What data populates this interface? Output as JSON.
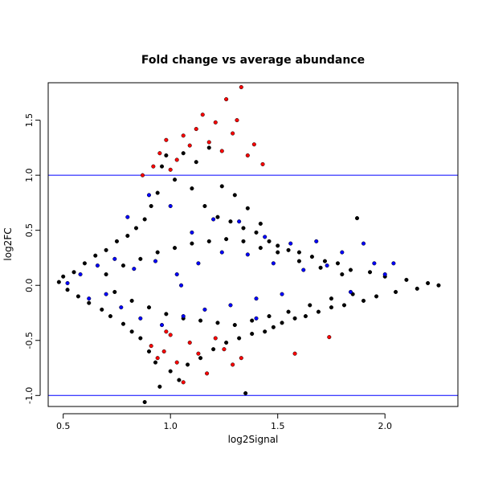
{
  "chart_data": {
    "type": "scatter",
    "title": "Fold change vs average abundance",
    "xlabel": "log2Signal",
    "ylabel": "log2FC",
    "xlim": [
      0.43,
      2.34
    ],
    "ylim": [
      -1.1,
      1.84
    ],
    "x_ticks": [
      "0.5",
      "1.0",
      "1.5",
      "2.0"
    ],
    "y_ticks": [
      "-1.0",
      "-0.5",
      "0.0",
      "0.5",
      "1.0",
      "1.5"
    ],
    "hlines": [
      1.0,
      -1.0
    ],
    "grid": false,
    "legend": "none",
    "colors": {
      "default": "#000000",
      "group_blue": "#0000ff",
      "group_red": "#ff0000",
      "reference_line": "#0000ff"
    },
    "series": [
      {
        "color": "#000000",
        "points": [
          [
            0.48,
            0.03
          ],
          [
            0.5,
            0.08
          ],
          [
            0.52,
            -0.04
          ],
          [
            0.55,
            0.12
          ],
          [
            0.57,
            -0.1
          ],
          [
            0.6,
            0.2
          ],
          [
            0.62,
            -0.16
          ],
          [
            0.65,
            0.27
          ],
          [
            0.68,
            -0.22
          ],
          [
            0.7,
            0.32
          ],
          [
            0.72,
            -0.28
          ],
          [
            0.75,
            0.4
          ],
          [
            0.78,
            -0.35
          ],
          [
            0.8,
            0.45
          ],
          [
            0.82,
            -0.42
          ],
          [
            0.84,
            0.52
          ],
          [
            0.86,
            -0.48
          ],
          [
            0.88,
            0.6
          ],
          [
            0.88,
            -1.06
          ],
          [
            0.9,
            -0.6
          ],
          [
            0.91,
            0.72
          ],
          [
            0.93,
            -0.7
          ],
          [
            0.94,
            0.84
          ],
          [
            0.95,
            -0.92
          ],
          [
            0.96,
            1.08
          ],
          [
            0.98,
            1.18
          ],
          [
            1.0,
            -0.78
          ],
          [
            1.02,
            0.96
          ],
          [
            1.04,
            -0.86
          ],
          [
            1.06,
            1.2
          ],
          [
            1.08,
            -0.72
          ],
          [
            1.1,
            0.88
          ],
          [
            1.12,
            1.12
          ],
          [
            1.14,
            -0.66
          ],
          [
            1.16,
            0.72
          ],
          [
            1.18,
            1.25
          ],
          [
            1.2,
            -0.58
          ],
          [
            1.22,
            0.62
          ],
          [
            1.24,
            0.9
          ],
          [
            1.26,
            -0.52
          ],
          [
            1.28,
            0.58
          ],
          [
            1.3,
            0.82
          ],
          [
            1.32,
            -0.48
          ],
          [
            1.34,
            0.52
          ],
          [
            1.35,
            -0.98
          ],
          [
            1.36,
            0.7
          ],
          [
            1.38,
            -0.44
          ],
          [
            1.4,
            0.48
          ],
          [
            1.42,
            0.56
          ],
          [
            1.44,
            -0.42
          ],
          [
            1.46,
            0.4
          ],
          [
            1.48,
            -0.38
          ],
          [
            1.5,
            0.36
          ],
          [
            1.52,
            -0.34
          ],
          [
            1.55,
            0.32
          ],
          [
            1.58,
            -0.3
          ],
          [
            1.6,
            0.3
          ],
          [
            1.63,
            -0.28
          ],
          [
            1.66,
            0.26
          ],
          [
            1.69,
            -0.24
          ],
          [
            1.72,
            0.22
          ],
          [
            1.75,
            -0.2
          ],
          [
            1.78,
            0.2
          ],
          [
            1.81,
            -0.18
          ],
          [
            1.84,
            0.14
          ],
          [
            1.87,
            0.61
          ],
          [
            1.9,
            -0.14
          ],
          [
            1.93,
            0.12
          ],
          [
            1.96,
            -0.1
          ],
          [
            2.0,
            0.08
          ],
          [
            2.05,
            -0.06
          ],
          [
            2.1,
            0.05
          ],
          [
            2.15,
            -0.03
          ],
          [
            2.2,
            0.02
          ],
          [
            2.25,
            0.0
          ],
          [
            0.7,
            0.1
          ],
          [
            0.74,
            -0.06
          ],
          [
            0.78,
            0.18
          ],
          [
            0.82,
            -0.14
          ],
          [
            0.86,
            0.24
          ],
          [
            0.9,
            -0.2
          ],
          [
            0.94,
            0.3
          ],
          [
            0.98,
            -0.26
          ],
          [
            1.02,
            0.34
          ],
          [
            1.06,
            -0.3
          ],
          [
            1.1,
            0.38
          ],
          [
            1.14,
            -0.32
          ],
          [
            1.18,
            0.4
          ],
          [
            1.22,
            -0.34
          ],
          [
            1.26,
            0.42
          ],
          [
            1.3,
            -0.36
          ],
          [
            1.34,
            0.4
          ],
          [
            1.38,
            -0.32
          ],
          [
            1.42,
            0.34
          ],
          [
            1.46,
            -0.28
          ],
          [
            1.5,
            0.3
          ],
          [
            1.55,
            -0.24
          ],
          [
            1.6,
            0.22
          ],
          [
            1.65,
            -0.18
          ],
          [
            1.7,
            0.16
          ],
          [
            1.75,
            -0.12
          ],
          [
            1.8,
            0.1
          ],
          [
            1.85,
            -0.08
          ]
        ]
      },
      {
        "color": "#0000ff",
        "points": [
          [
            0.52,
            0.02
          ],
          [
            0.58,
            0.1
          ],
          [
            0.62,
            -0.12
          ],
          [
            0.66,
            0.18
          ],
          [
            0.7,
            -0.08
          ],
          [
            0.74,
            0.24
          ],
          [
            0.77,
            -0.2
          ],
          [
            0.8,
            0.62
          ],
          [
            0.83,
            0.15
          ],
          [
            0.86,
            -0.3
          ],
          [
            0.9,
            0.82
          ],
          [
            0.93,
            0.22
          ],
          [
            0.96,
            -0.36
          ],
          [
            1.0,
            0.72
          ],
          [
            1.03,
            0.1
          ],
          [
            1.06,
            -0.28
          ],
          [
            1.1,
            0.48
          ],
          [
            1.13,
            0.2
          ],
          [
            1.16,
            -0.22
          ],
          [
            1.2,
            0.6
          ],
          [
            1.24,
            0.3
          ],
          [
            1.28,
            -0.18
          ],
          [
            1.32,
            0.58
          ],
          [
            1.36,
            0.28
          ],
          [
            1.4,
            -0.12
          ],
          [
            1.44,
            0.44
          ],
          [
            1.48,
            0.2
          ],
          [
            1.52,
            -0.08
          ],
          [
            1.56,
            0.38
          ],
          [
            1.62,
            0.14
          ],
          [
            1.68,
            0.4
          ],
          [
            1.73,
            0.18
          ],
          [
            1.8,
            0.3
          ],
          [
            1.84,
            -0.06
          ],
          [
            1.9,
            0.38
          ],
          [
            1.95,
            0.2
          ],
          [
            2.0,
            0.1
          ],
          [
            2.04,
            0.2
          ],
          [
            1.4,
            -0.3
          ],
          [
            1.05,
            0.0
          ]
        ]
      },
      {
        "color": "#ff0000",
        "points": [
          [
            0.87,
            1.0
          ],
          [
            0.92,
            1.08
          ],
          [
            0.95,
            1.2
          ],
          [
            0.98,
            1.32
          ],
          [
            1.0,
            1.05
          ],
          [
            1.03,
            1.14
          ],
          [
            1.06,
            1.36
          ],
          [
            1.09,
            1.27
          ],
          [
            1.12,
            1.42
          ],
          [
            1.15,
            1.55
          ],
          [
            1.18,
            1.3
          ],
          [
            1.21,
            1.48
          ],
          [
            1.24,
            1.22
          ],
          [
            1.26,
            1.69
          ],
          [
            1.29,
            1.38
          ],
          [
            1.31,
            1.5
          ],
          [
            1.33,
            1.8
          ],
          [
            1.36,
            1.18
          ],
          [
            1.39,
            1.28
          ],
          [
            1.43,
            1.1
          ],
          [
            0.91,
            -0.55
          ],
          [
            0.94,
            -0.66
          ],
          [
            0.97,
            -0.6
          ],
          [
            1.0,
            -0.45
          ],
          [
            1.03,
            -0.7
          ],
          [
            1.06,
            -0.88
          ],
          [
            1.09,
            -0.52
          ],
          [
            1.13,
            -0.62
          ],
          [
            1.17,
            -0.8
          ],
          [
            1.21,
            -0.48
          ],
          [
            1.25,
            -0.58
          ],
          [
            1.29,
            -0.72
          ],
          [
            1.33,
            -0.66
          ],
          [
            1.58,
            -0.62
          ],
          [
            1.74,
            -0.47
          ],
          [
            0.98,
            -0.42
          ]
        ]
      }
    ]
  }
}
